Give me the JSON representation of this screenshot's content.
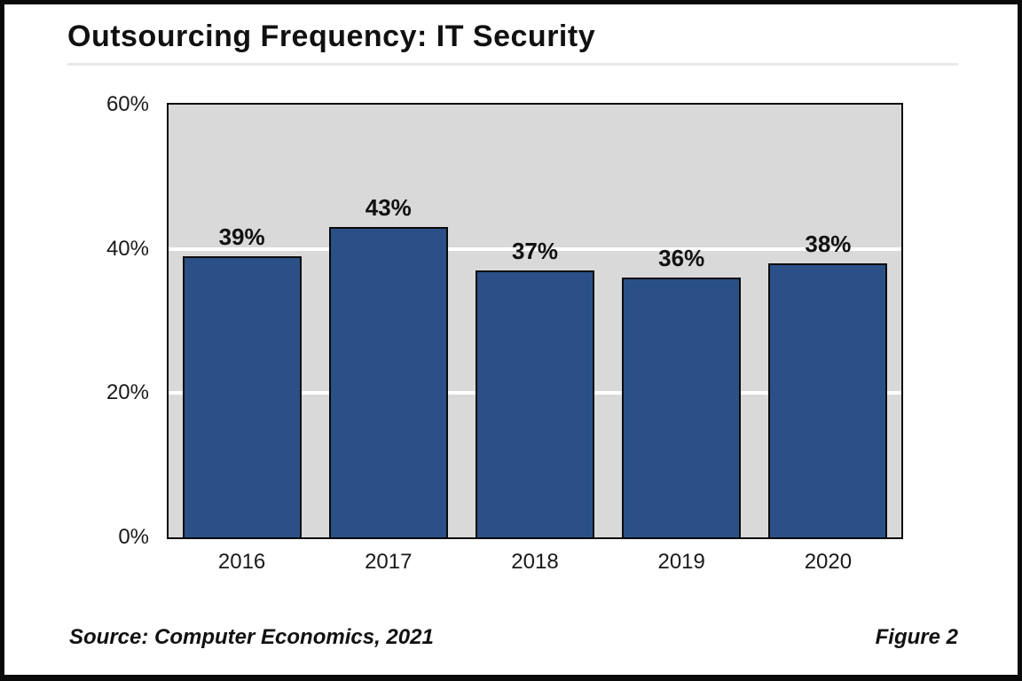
{
  "header": {
    "title": "Outsourcing Frequency: IT Security"
  },
  "footer": {
    "source": "Source: Computer Economics, 2021",
    "figure_label": "Figure 2"
  },
  "colors": {
    "bar_fill": "#2b5088",
    "bar_border": "#0a0a0a",
    "plot_bg": "#d9d9d9",
    "gridline": "#ffffff",
    "axis": "#0a0a0a",
    "frame_border": "#0a0a0a",
    "title_rule": "#e9e9e9",
    "text": "#111111"
  },
  "chart_data": {
    "type": "bar",
    "title": "Outsourcing Frequency: IT Security",
    "categories": [
      "2016",
      "2017",
      "2018",
      "2019",
      "2020"
    ],
    "values": [
      39,
      43,
      37,
      36,
      38
    ],
    "value_labels": [
      "39%",
      "43%",
      "37%",
      "36%",
      "38%"
    ],
    "xlabel": "",
    "ylabel": "",
    "ylim": [
      0,
      60
    ],
    "yticks": [
      {
        "value": 0,
        "label": "0%"
      },
      {
        "value": 20,
        "label": "20%"
      },
      {
        "value": 40,
        "label": "40%"
      },
      {
        "value": 60,
        "label": "60%"
      }
    ],
    "gridline_values": [
      20,
      40
    ],
    "grid": "horizontal white lines on gray plot background",
    "legend": "none",
    "bar_labels_position": "above bars",
    "source": "Source: Computer Economics, 2021",
    "figure_number": "Figure 2"
  }
}
